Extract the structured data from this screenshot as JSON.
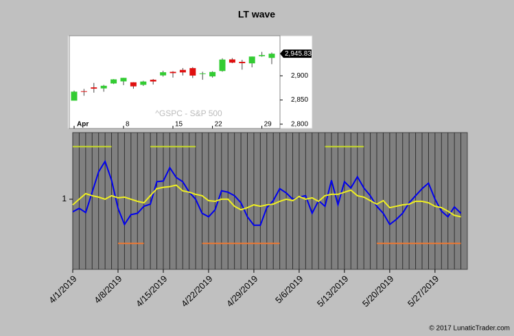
{
  "chart_data": [
    {
      "type": "line",
      "title": "LT wave",
      "x": [
        "2019-04-01",
        "2019-04-02",
        "2019-04-03",
        "2019-04-04",
        "2019-04-05",
        "2019-04-06",
        "2019-04-07",
        "2019-04-08",
        "2019-04-09",
        "2019-04-10",
        "2019-04-11",
        "2019-04-12",
        "2019-04-13",
        "2019-04-14",
        "2019-04-15",
        "2019-04-16",
        "2019-04-17",
        "2019-04-18",
        "2019-04-19",
        "2019-04-20",
        "2019-04-21",
        "2019-04-22",
        "2019-04-23",
        "2019-04-24",
        "2019-04-25",
        "2019-04-26",
        "2019-04-27",
        "2019-04-28",
        "2019-04-29",
        "2019-04-30",
        "2019-05-01",
        "2019-05-02",
        "2019-05-03",
        "2019-05-04",
        "2019-05-05",
        "2019-05-06",
        "2019-05-07",
        "2019-05-08",
        "2019-05-09",
        "2019-05-10",
        "2019-05-11",
        "2019-05-12",
        "2019-05-13",
        "2019-05-14",
        "2019-05-15",
        "2019-05-16",
        "2019-05-17",
        "2019-05-18",
        "2019-05-19",
        "2019-05-20",
        "2019-05-21",
        "2019-05-22",
        "2019-05-23",
        "2019-05-24",
        "2019-05-25",
        "2019-05-26",
        "2019-05-27",
        "2019-05-28",
        "2019-05-29",
        "2019-05-30",
        "2019-05-31"
      ],
      "series": [
        {
          "color": "#0000ee",
          "values": [
            0.82,
            0.87,
            0.81,
            1.1,
            1.39,
            1.54,
            1.27,
            0.87,
            0.64,
            0.78,
            0.8,
            0.9,
            0.93,
            1.25,
            1.26,
            1.45,
            1.31,
            1.25,
            1.1,
            1.0,
            0.8,
            0.75,
            0.85,
            1.12,
            1.1,
            1.05,
            0.95,
            0.75,
            0.63,
            0.63,
            0.88,
            0.98,
            1.15,
            1.09,
            1.0,
            1.03,
            1.05,
            0.8,
            0.98,
            0.9,
            1.27,
            0.92,
            1.25,
            1.16,
            1.32,
            1.16,
            1.05,
            0.9,
            0.8,
            0.64,
            0.71,
            0.8,
            0.95,
            1.05,
            1.15,
            1.23,
            1.0,
            0.83,
            0.75,
            0.89,
            0.8
          ]
        },
        {
          "color": "#f0f020",
          "values": [
            0.92,
            1.0,
            1.08,
            1.05,
            1.03,
            1.0,
            1.05,
            1.02,
            1.03,
            1.0,
            0.97,
            0.95,
            1.05,
            1.15,
            1.17,
            1.18,
            1.2,
            1.12,
            1.1,
            1.07,
            1.05,
            0.98,
            0.97,
            1.0,
            1.0,
            0.9,
            0.85,
            0.88,
            0.92,
            0.9,
            0.92,
            0.93,
            0.97,
            1.0,
            0.98,
            1.04,
            1.0,
            1.02,
            0.97,
            1.05,
            1.07,
            1.07,
            1.1,
            1.13,
            1.05,
            1.03,
            0.98,
            0.93,
            0.98,
            0.88,
            0.9,
            0.92,
            0.93,
            0.97,
            0.97,
            0.95,
            0.9,
            0.88,
            0.83,
            0.77,
            0.75
          ]
        }
      ],
      "levels": [
        {
          "color": "#c8dc28",
          "value": 1.75,
          "segments": [
            [
              "2019-04-01",
              "2019-04-07"
            ],
            [
              "2019-04-13",
              "2019-04-20"
            ],
            [
              "2019-05-10",
              "2019-05-16"
            ]
          ]
        },
        {
          "color": "#f07830",
          "value": 0.37,
          "segments": [
            [
              "2019-04-08",
              "2019-04-12"
            ],
            [
              "2019-04-21",
              "2019-05-03"
            ],
            [
              "2019-05-18",
              "2019-05-31"
            ]
          ]
        }
      ],
      "xlim": [
        "2019-04-01",
        "2019-06-01"
      ],
      "xticks": [
        {
          "value": "2019-04-01",
          "label": "4/1/2019"
        },
        {
          "value": "2019-04-08",
          "label": "4/8/2019"
        },
        {
          "value": "2019-04-15",
          "label": "4/15/2019"
        },
        {
          "value": "2019-04-22",
          "label": "4/22/2019"
        },
        {
          "value": "2019-04-29",
          "label": "4/29/2019"
        },
        {
          "value": "2019-05-06",
          "label": "5/6/2019"
        },
        {
          "value": "2019-05-13",
          "label": "5/13/2019"
        },
        {
          "value": "2019-05-20",
          "label": "5/20/2019"
        },
        {
          "value": "2019-05-27",
          "label": "5/27/2019"
        }
      ],
      "ylim": [
        0,
        1.95
      ],
      "yticks": [
        1
      ],
      "grid": true,
      "credit": "© 2017 LunaticTrader.com"
    },
    {
      "type": "candlestick",
      "watermark": "^GSPC - S&P 500",
      "categories": [
        "Apr",
        null,
        null,
        null,
        null,
        "8",
        null,
        null,
        null,
        null,
        "15",
        null,
        null,
        null,
        "22",
        null,
        null,
        null,
        null,
        "29",
        null
      ],
      "open": [
        2848.6,
        2868.2,
        2876.1,
        2874.0,
        2884.2,
        2888.5,
        2886.6,
        2881.4,
        2891.9,
        2900.9,
        2908.3,
        2912.3,
        2916.0,
        2904.8,
        2898.8,
        2910.0,
        2934.0,
        2929.0,
        2925.8,
        2940.6,
        2937.1
      ],
      "high": [
        2869.4,
        2872.9,
        2885.3,
        2881.3,
        2893.2,
        2895.9,
        2886.9,
        2889.7,
        2893.4,
        2910.5,
        2909.6,
        2916.1,
        2918.0,
        2908.4,
        2909.5,
        2936.3,
        2936.8,
        2933.1,
        2939.9,
        2949.5,
        2948.2
      ],
      "low": [
        2848.6,
        2858.8,
        2865.2,
        2867.1,
        2883.0,
        2880.8,
        2873.3,
        2879.1,
        2882.0,
        2898.4,
        2896.5,
        2900.7,
        2895.5,
        2891.9,
        2896.4,
        2908.5,
        2926.1,
        2912.8,
        2917.6,
        2939.4,
        2924.1
      ],
      "close": [
        2867.2,
        2867.2,
        2873.4,
        2879.4,
        2892.7,
        2895.8,
        2878.2,
        2888.2,
        2888.3,
        2907.4,
        2905.6,
        2907.1,
        2900.5,
        2905.0,
        2908.0,
        2933.7,
        2927.3,
        2926.2,
        2939.9,
        2943.0,
        2945.83
      ],
      "up_color": "#33cc33",
      "down_color": "#e01010",
      "last_price": {
        "value": 2945.83,
        "label": "2,945.83"
      },
      "ylim": [
        2791,
        2983
      ],
      "yticks": [
        {
          "value": 2900,
          "label": "2,900"
        },
        {
          "value": 2850,
          "label": "2,850"
        },
        {
          "value": 2800,
          "label": "2,800"
        }
      ]
    }
  ]
}
